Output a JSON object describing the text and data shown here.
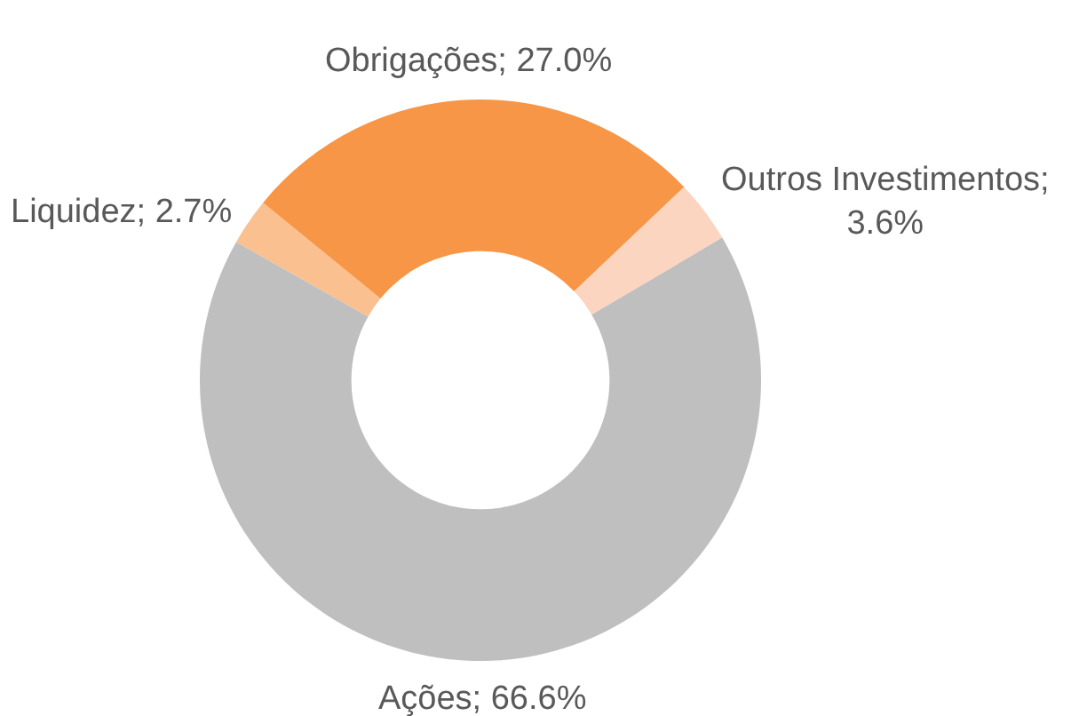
{
  "chart_data": {
    "type": "donut",
    "categories": [
      "Liquidez; 2.7%",
      "Obrigações; 27.0%",
      "Outros Investimentos; 3.6%",
      "Ações; 66.6%"
    ],
    "values": [
      2.7,
      27.0,
      3.6,
      66.6
    ],
    "colors": [
      "#fac090",
      "#f79646",
      "#fcd5c0",
      "#bfbfbf"
    ]
  }
}
